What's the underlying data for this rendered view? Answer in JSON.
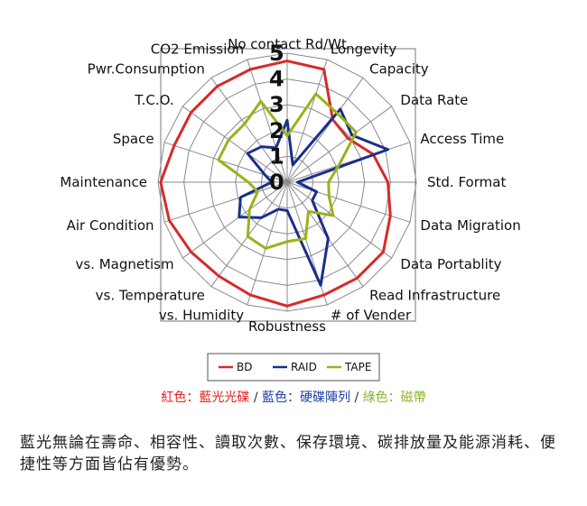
{
  "chart_data": {
    "type": "radar",
    "axes": [
      "No contact Rd/Wt",
      "Longevity",
      "Capacity",
      "Data Rate",
      "Access Time",
      "Std. Format",
      "Data Migration",
      "Data Portablity",
      "Read Infrastructure",
      "# of Vender",
      "Robustness",
      "vs. Humidity",
      "vs. Temperature",
      "vs. Magnetism",
      "Air Condition",
      "Maintenance",
      "Space",
      "T.C.O.",
      "Pwr.Consumption",
      "CO2 Emission"
    ],
    "ticks": [
      "0",
      "1",
      "2",
      "3",
      "4",
      "5"
    ],
    "rmax": 5,
    "series": [
      {
        "name": "BD",
        "color": "#d62a2a",
        "values": [
          4.7,
          4.6,
          3.0,
          2.9,
          3.5,
          3.9,
          4.2,
          4.6,
          4.6,
          4.6,
          4.8,
          4.6,
          4.5,
          4.6,
          4.8,
          4.9,
          4.6,
          4.6,
          4.6,
          4.6
        ]
      },
      {
        "name": "RAID",
        "color": "#1a2f8a",
        "values": [
          2.4,
          0.7,
          3.5,
          3.1,
          4.1,
          0.4,
          1.2,
          1.2,
          2.7,
          4.2,
          1.1,
          1.1,
          1.7,
          2.3,
          1.9,
          0.6,
          0.9,
          1.9,
          1.7,
          1.4
        ]
      },
      {
        "name": "TAPE",
        "color": "#9ab21c",
        "values": [
          1.8,
          3.6,
          3.3,
          3.3,
          2.1,
          1.6,
          1.7,
          2.2,
          1.4,
          2.3,
          2.3,
          2.7,
          2.6,
          1.8,
          1.2,
          1.5,
          2.8,
          2.8,
          2.8,
          3.3
        ]
      }
    ],
    "legend_position": "bottom"
  },
  "caption": {
    "part1": "紅色：藍光光碟",
    "sep1": " / ",
    "part2": "藍色：硬碟陣列",
    "sep2": " / ",
    "part3": "綠色：磁帶",
    "colors": {
      "red": "#e02020",
      "blue": "#1f3fa8",
      "green": "#8cb424",
      "sep": "#333333"
    }
  },
  "description": "藍光無論在壽命、相容性、讀取次數、保存環境、碳排放量及能源消耗、便捷性等方面皆佔有優勢。"
}
